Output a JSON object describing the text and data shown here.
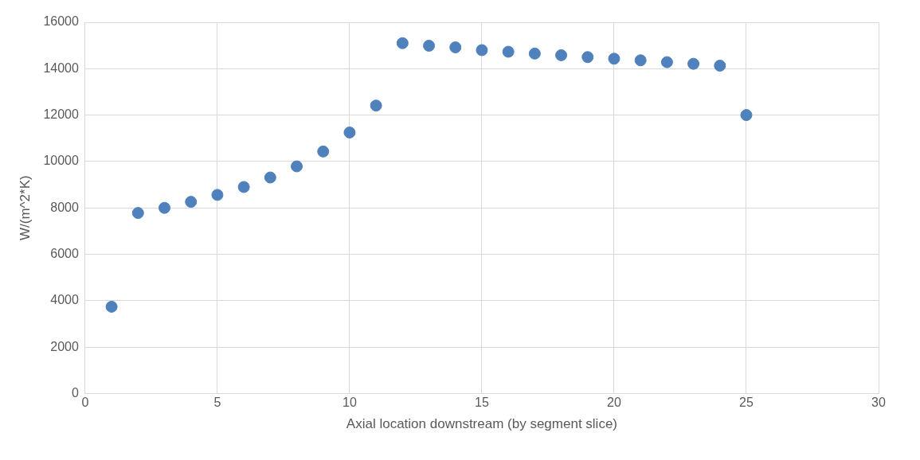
{
  "chart_data": {
    "type": "scatter",
    "xlabel": "Axial location downstream (by segment slice)",
    "ylabel": "W/(m^2*K)",
    "x": [
      1,
      2,
      3,
      4,
      5,
      6,
      7,
      8,
      9,
      10,
      11,
      12,
      13,
      14,
      15,
      16,
      17,
      18,
      19,
      20,
      21,
      22,
      23,
      24,
      25
    ],
    "series": [
      {
        "color": "#4f81bd",
        "values": [
          3740,
          7780,
          8000,
          8260,
          8560,
          8900,
          9310,
          9790,
          10430,
          11250,
          12410,
          15100,
          14990,
          14920,
          14800,
          14730,
          14650,
          14580,
          14500,
          14430,
          14360,
          14280,
          14210,
          14130,
          12000
        ]
      }
    ],
    "xlim": [
      0,
      30
    ],
    "xticks": [
      0,
      5,
      10,
      15,
      20,
      25,
      30
    ],
    "ylim": [
      0,
      16000
    ],
    "yticks": [
      0,
      2000,
      4000,
      6000,
      8000,
      10000,
      12000,
      14000,
      16000
    ],
    "grid": true,
    "marker": "circle",
    "legend": false
  }
}
